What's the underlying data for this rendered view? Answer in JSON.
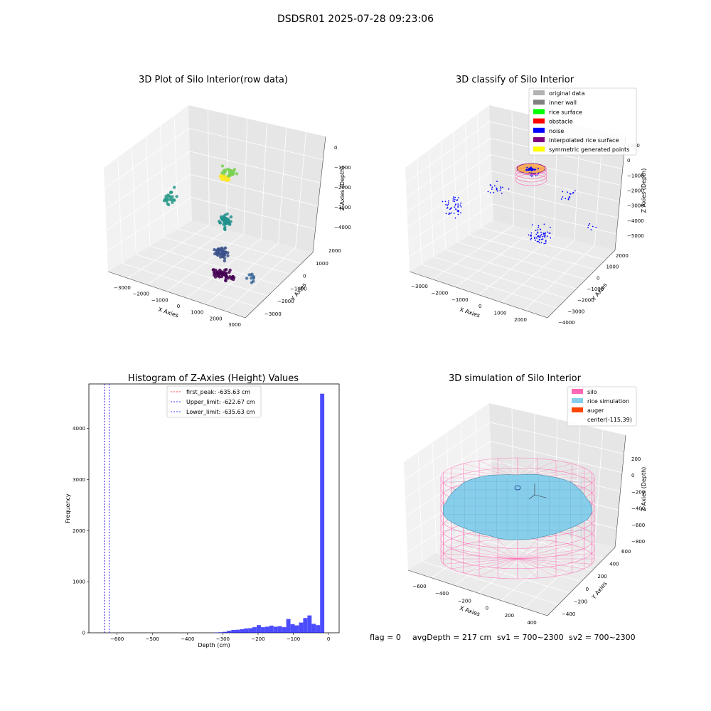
{
  "figure": {
    "suptitle": "DSDSR01 2025-07-28 09:23:06",
    "footer": {
      "flag": "flag = 0",
      "avg_depth": "avgDepth = 217 cm",
      "sv1": "sv1 = 700~2300",
      "sv2": "sv2 = 700~2300"
    }
  },
  "chart_data": [
    {
      "id": "raw",
      "type": "scatter3d",
      "title": "3D Plot of Silo Interior(row data)",
      "xlabel": "X Axies",
      "ylabel": "Y Axies",
      "zlabel": "Z Axies (Depth)",
      "x_ticks": [
        "−3000",
        "−2000",
        "−1000",
        "0",
        "1000",
        "2000",
        "3000"
      ],
      "y_ticks": [
        "2000",
        "1000",
        "0",
        "−1000",
        "−2000",
        "−3000"
      ],
      "z_ticks": [
        "0",
        "−1000",
        "−2000",
        "−3000",
        "−4000"
      ],
      "colormap": [
        "#440154",
        "#3b528b",
        "#21918c",
        "#5ec962",
        "#fde725"
      ],
      "clusters": [
        {
          "x": 300,
          "y": 0,
          "z": 0,
          "n": 60,
          "spread": [
            300,
            150,
            120
          ],
          "color": "#fde725"
        },
        {
          "x": -700,
          "y": 2000,
          "z": -800,
          "n": 30,
          "spread": [
            600,
            300,
            300
          ],
          "color": "#7ad151"
        },
        {
          "x": -2500,
          "y": 200,
          "z": -2000,
          "n": 25,
          "spread": [
            300,
            900,
            600
          ],
          "color": "#2a9a8a"
        },
        {
          "x": 500,
          "y": -300,
          "z": -1900,
          "n": 40,
          "spread": [
            400,
            300,
            600
          ],
          "color": "#21918c"
        },
        {
          "x": 500,
          "y": -600,
          "z": -3300,
          "n": 45,
          "spread": [
            500,
            400,
            400
          ],
          "color": "#3b528b"
        },
        {
          "x": 800,
          "y": -1000,
          "z": -4100,
          "n": 55,
          "spread": [
            900,
            500,
            250
          ],
          "color": "#440154"
        },
        {
          "x": 2500,
          "y": -1500,
          "z": -3500,
          "n": 10,
          "spread": [
            300,
            400,
            500
          ],
          "color": "#3b6a9a"
        }
      ]
    },
    {
      "id": "classify",
      "type": "scatter3d",
      "title": "3D classify of Silo Interior",
      "xlabel": "X Axies",
      "ylabel": "Y Axies",
      "zlabel": "Z Axies (Depth)",
      "x_ticks": [
        "−3000",
        "−2000",
        "−1000",
        "0",
        "1000",
        "2000"
      ],
      "y_ticks": [
        "2000",
        "1000",
        "0",
        "−1000",
        "−2000",
        "−3000",
        "−4000"
      ],
      "z_ticks": [
        "1000",
        "0",
        "−1000",
        "−2000",
        "−3000",
        "−4000",
        "−5000"
      ],
      "legend": {
        "position": "top-right",
        "items": [
          {
            "label": "original data",
            "color": "#b3b3b3"
          },
          {
            "label": "inner wall",
            "color": "#808080"
          },
          {
            "label": "rice surface",
            "color": "#00ff00"
          },
          {
            "label": "obstacle",
            "color": "#ff0000"
          },
          {
            "label": "noise",
            "color": "#0000ff"
          },
          {
            "label": "interpolated rice surface",
            "color": "#800080"
          },
          {
            "label": "symmetric generated points",
            "color": "#ffff00"
          }
        ]
      }
    },
    {
      "id": "histogram",
      "type": "bar",
      "title": "Histogram of Z-Axies (Height) Values",
      "xlabel": "Depth (cm)",
      "ylabel": "Frequency",
      "xlim": [
        -680,
        30
      ],
      "ylim": [
        0,
        4870
      ],
      "x_ticks": [
        -600,
        -500,
        -400,
        -300,
        -200,
        -100,
        0
      ],
      "x_tick_labels": [
        "−600",
        "−500",
        "−400",
        "−300",
        "−200",
        "−100",
        "0"
      ],
      "y_ticks": [
        0,
        1000,
        2000,
        3000,
        4000
      ],
      "y_tick_labels": [
        "0",
        "1000",
        "2000",
        "3000",
        "4000"
      ],
      "bar_color": "#0000ff",
      "bin_width": 12,
      "bins": [
        {
          "x": -324,
          "v": 5
        },
        {
          "x": -312,
          "v": 10
        },
        {
          "x": -300,
          "v": 20
        },
        {
          "x": -288,
          "v": 40
        },
        {
          "x": -276,
          "v": 55
        },
        {
          "x": -264,
          "v": 60
        },
        {
          "x": -252,
          "v": 70
        },
        {
          "x": -240,
          "v": 85
        },
        {
          "x": -228,
          "v": 90
        },
        {
          "x": -216,
          "v": 110
        },
        {
          "x": -204,
          "v": 150
        },
        {
          "x": -192,
          "v": 110
        },
        {
          "x": -180,
          "v": 120
        },
        {
          "x": -168,
          "v": 140
        },
        {
          "x": -156,
          "v": 120
        },
        {
          "x": -144,
          "v": 130
        },
        {
          "x": -132,
          "v": 110
        },
        {
          "x": -120,
          "v": 270
        },
        {
          "x": -108,
          "v": 170
        },
        {
          "x": -96,
          "v": 145
        },
        {
          "x": -84,
          "v": 200
        },
        {
          "x": -72,
          "v": 290
        },
        {
          "x": -60,
          "v": 340
        },
        {
          "x": -48,
          "v": 175
        },
        {
          "x": -36,
          "v": 150
        },
        {
          "x": -24,
          "v": 4680
        }
      ],
      "vlines": [
        {
          "label": "first_peak: -635.63 cm",
          "x": -635.63,
          "color": "#ff0000"
        },
        {
          "label": "Upper_limit: -622.67 cm",
          "x": -622.67,
          "color": "#0000ff"
        },
        {
          "label": "Lower_limit: -635.63 cm",
          "x": -635.63,
          "color": "#0000ff"
        }
      ],
      "legend_position": "top-center"
    },
    {
      "id": "simulation",
      "type": "surface3d",
      "title": "3D simulation of Silo Interior",
      "xlabel": "X Axies",
      "ylabel": "Y Axies",
      "zlabel": "Z Axies (Depth)",
      "x_ticks": [
        "−600",
        "−400",
        "−200",
        "0",
        "200",
        "400"
      ],
      "y_ticks": [
        "600",
        "400",
        "200",
        "0",
        "−200",
        "−400"
      ],
      "z_ticks": [
        "200",
        "0",
        "−200",
        "−400",
        "−600",
        "−800"
      ],
      "legend": {
        "position": "top-right",
        "items": [
          {
            "label": "silo",
            "color": "#ff69b4"
          },
          {
            "label": "rice simulation",
            "color": "#87ceeb"
          },
          {
            "label": "auger",
            "color": "#ff4500"
          },
          {
            "label": "center(-115,39)",
            "color": ""
          }
        ]
      }
    }
  ]
}
